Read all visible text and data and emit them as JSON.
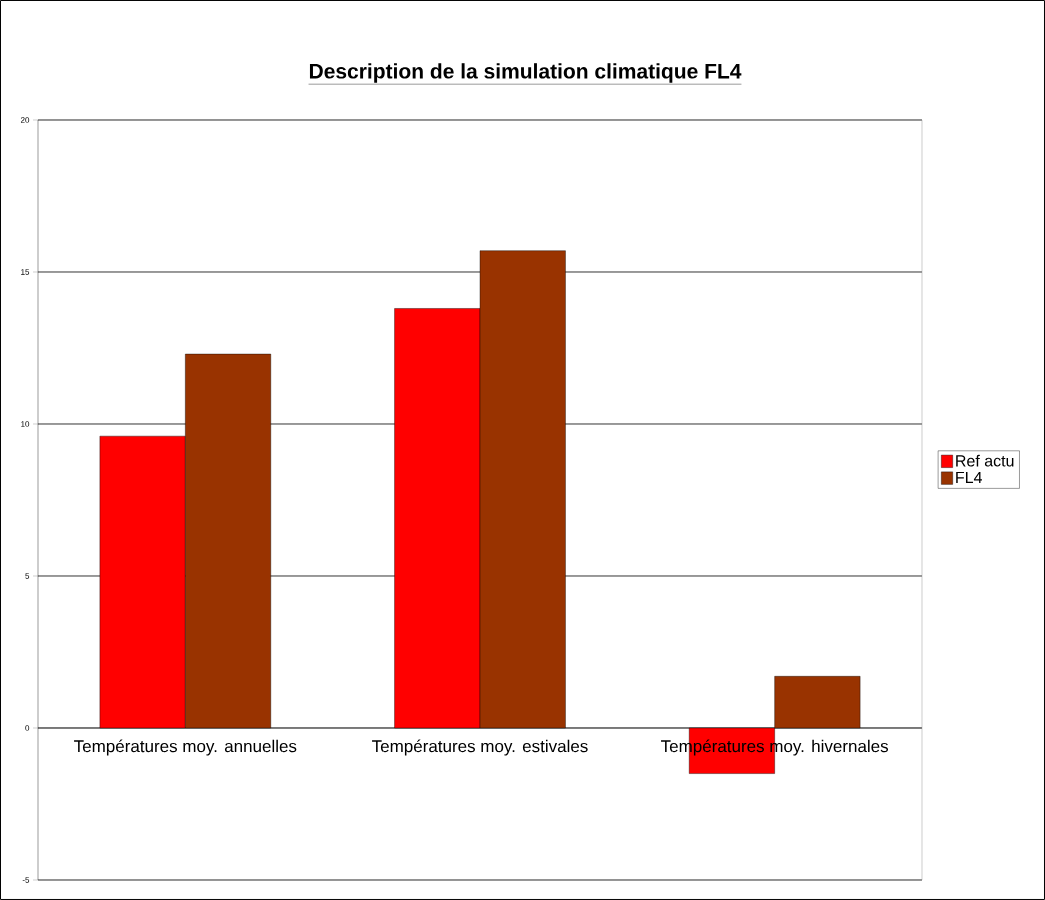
{
  "chart_data": {
    "type": "bar",
    "title": "Description de la simulation climatique FL4",
    "categories": [
      "Températures moy. annuelles",
      "Températures moy. estivales",
      "Températures moy. hivernales"
    ],
    "series": [
      {
        "name": "Ref actu",
        "color": "#ff0000",
        "values": [
          9.6,
          13.8,
          -1.5
        ]
      },
      {
        "name": "FL4",
        "color": "#993300",
        "values": [
          12.3,
          15.7,
          1.7
        ]
      }
    ],
    "ylim": [
      -5,
      20
    ],
    "yticks": [
      -5,
      0,
      5,
      10,
      15,
      20
    ],
    "grid": "y",
    "legend": "right"
  }
}
